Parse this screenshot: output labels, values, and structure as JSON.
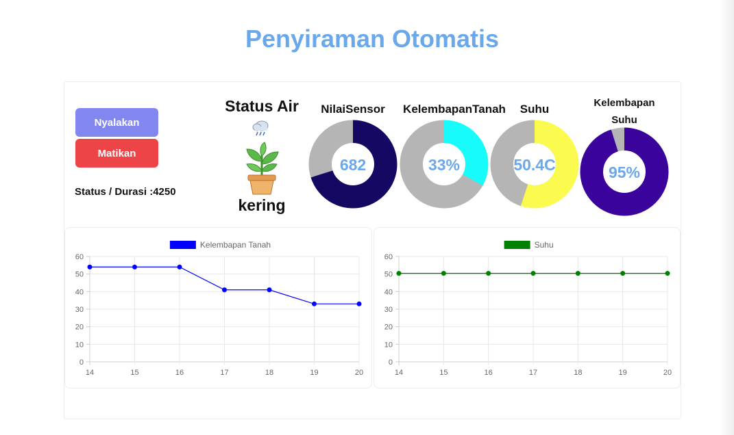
{
  "page": {
    "title": "Penyiraman Otomatis"
  },
  "controls": {
    "on_label": "Nyalakan",
    "off_label": "Matikan",
    "status_text": "Status / Durasi :4250"
  },
  "status_air": {
    "title": "Status Air",
    "value": "kering",
    "icons": [
      "rain-cloud-icon",
      "potted-plant-icon"
    ]
  },
  "gauges": [
    {
      "label": "NilaiSensor",
      "display": "682",
      "fraction": 0.7,
      "color": "#130963",
      "track": "#b5b5b5"
    },
    {
      "label": "KelembapanTanah",
      "display": "33%",
      "fraction": 0.33,
      "color": "#17fbfb",
      "track": "#b5b5b5"
    },
    {
      "label": "Suhu",
      "display": "50.4C",
      "fraction": 0.55,
      "color": "#fbfb4f",
      "track": "#b5b5b5"
    },
    {
      "label": "Kelembapan Suhu",
      "display": "95%",
      "fraction": 0.95,
      "color": "#3a039b",
      "track": "#b5b5b5"
    }
  ],
  "chart_data": [
    {
      "type": "line",
      "series": [
        {
          "name": "Kelembapan Tanah",
          "color": "#0000ff",
          "values": [
            54,
            54,
            54,
            41,
            41,
            33,
            33
          ]
        }
      ],
      "x": [
        14,
        15,
        16,
        17,
        18,
        19,
        20
      ],
      "ylim": [
        0,
        60
      ],
      "yticks": [
        0,
        10,
        20,
        30,
        40,
        50,
        60
      ],
      "grid": true,
      "legend": "top-center"
    },
    {
      "type": "line",
      "series": [
        {
          "name": "Suhu",
          "color": "#008000",
          "values": [
            50.4,
            50.4,
            50.4,
            50.4,
            50.4,
            50.4,
            50.4
          ]
        }
      ],
      "x": [
        14,
        15,
        16,
        17,
        18,
        19,
        20
      ],
      "ylim": [
        0,
        60
      ],
      "yticks": [
        0,
        10,
        20,
        30,
        40,
        50,
        60
      ],
      "grid": true,
      "legend": "top-center"
    }
  ]
}
